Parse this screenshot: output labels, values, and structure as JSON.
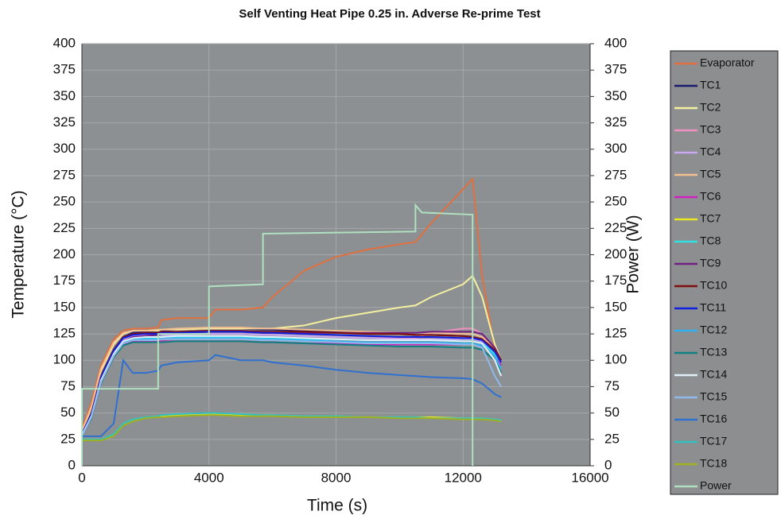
{
  "chart_data": {
    "type": "line",
    "title": "Self Venting Heat Pipe 0.25 in. Adverse Re-prime Test",
    "x_label": "Time (s)",
    "y_label": "Temperature (°C)",
    "y2_label": "Power (W)",
    "xlim": [
      0,
      16000
    ],
    "xticks": [
      0,
      4000,
      8000,
      12000,
      16000
    ],
    "ylim": [
      0,
      400
    ],
    "yticks": [
      0,
      25,
      50,
      75,
      100,
      125,
      150,
      175,
      200,
      225,
      250,
      275,
      300,
      325,
      350,
      375,
      400
    ],
    "y2lim": [
      0,
      400
    ],
    "y2ticks": [
      0,
      25,
      50,
      75,
      100,
      125,
      150,
      175,
      200,
      225,
      250,
      275,
      300,
      325,
      350,
      375,
      400
    ],
    "grid": true,
    "legend": "right",
    "x": [
      0,
      300,
      600,
      1000,
      1300,
      1600,
      2000,
      2400,
      2500,
      3000,
      4000,
      4200,
      5000,
      5700,
      6000,
      7000,
      8000,
      9000,
      10000,
      10500,
      11000,
      12000,
      12300,
      12600,
      13000,
      13200
    ],
    "series": [
      {
        "name": "Evaporator",
        "color": "#e07040",
        "values": [
          35,
          60,
          95,
          120,
          128,
          130,
          130,
          131,
          138,
          140,
          140,
          148,
          148,
          150,
          160,
          185,
          198,
          205,
          210,
          212,
          230,
          262,
          272,
          180,
          110,
          100
        ]
      },
      {
        "name": "TC1",
        "color": "#1a1a6e",
        "values": [
          30,
          50,
          85,
          110,
          122,
          126,
          127,
          127,
          128,
          129,
          130,
          130,
          130,
          129,
          129,
          128,
          127,
          126,
          125,
          124,
          124,
          123,
          122,
          120,
          110,
          100
        ]
      },
      {
        "name": "TC2",
        "color": "#f5f0a0",
        "values": [
          32,
          55,
          90,
          115,
          125,
          128,
          128,
          128,
          129,
          129,
          130,
          130,
          130,
          130,
          130,
          133,
          140,
          145,
          150,
          152,
          160,
          172,
          180,
          160,
          115,
          100
        ]
      },
      {
        "name": "TC3",
        "color": "#f090c0",
        "values": [
          30,
          48,
          82,
          108,
          120,
          124,
          124,
          124,
          125,
          125,
          125,
          125,
          125,
          124,
          124,
          123,
          122,
          121,
          121,
          121,
          126,
          130,
          130,
          125,
          110,
          100
        ]
      },
      {
        "name": "TC4",
        "color": "#c8a8f0",
        "values": [
          30,
          48,
          82,
          108,
          120,
          123,
          123,
          124,
          124,
          124,
          125,
          125,
          125,
          124,
          124,
          123,
          122,
          121,
          120,
          120,
          120,
          120,
          120,
          118,
          108,
          100
        ]
      },
      {
        "name": "TC5",
        "color": "#f5c090",
        "values": [
          33,
          56,
          92,
          117,
          126,
          128,
          128,
          129,
          129,
          130,
          131,
          131,
          131,
          130,
          130,
          129,
          128,
          127,
          126,
          126,
          126,
          125,
          125,
          122,
          110,
          100
        ]
      },
      {
        "name": "TC6",
        "color": "#d020c0",
        "values": [
          28,
          45,
          78,
          103,
          115,
          118,
          118,
          118,
          118,
          118,
          118,
          118,
          118,
          117,
          117,
          116,
          116,
          115,
          115,
          115,
          115,
          115,
          116,
          114,
          105,
          95
        ]
      },
      {
        "name": "TC7",
        "color": "#e8e820",
        "values": [
          25,
          25,
          25,
          30,
          40,
          44,
          46,
          47,
          47,
          48,
          49,
          49,
          48,
          48,
          48,
          47,
          47,
          46,
          46,
          46,
          46,
          45,
          45,
          45,
          44,
          43
        ]
      },
      {
        "name": "TC8",
        "color": "#30e0e0",
        "values": [
          29,
          47,
          80,
          106,
          118,
          121,
          121,
          121,
          122,
          122,
          122,
          122,
          122,
          121,
          121,
          120,
          120,
          119,
          119,
          119,
          119,
          118,
          118,
          116,
          106,
          98
        ]
      },
      {
        "name": "TC9",
        "color": "#702080",
        "values": [
          29,
          47,
          80,
          105,
          118,
          122,
          123,
          124,
          125,
          126,
          127,
          127,
          127,
          126,
          126,
          126,
          126,
          126,
          126,
          126,
          127,
          127,
          127,
          125,
          112,
          100
        ]
      },
      {
        "name": "TC10",
        "color": "#801010",
        "values": [
          30,
          50,
          85,
          110,
          122,
          125,
          126,
          126,
          127,
          127,
          128,
          128,
          128,
          127,
          127,
          127,
          126,
          125,
          125,
          124,
          124,
          123,
          122,
          120,
          110,
          100
        ]
      },
      {
        "name": "TC11",
        "color": "#1020e0",
        "values": [
          30,
          49,
          84,
          109,
          121,
          124,
          125,
          125,
          126,
          126,
          127,
          127,
          127,
          126,
          126,
          125,
          124,
          123,
          122,
          122,
          122,
          121,
          121,
          119,
          108,
          98
        ]
      },
      {
        "name": "TC12",
        "color": "#30b0f0",
        "values": [
          29,
          46,
          80,
          105,
          117,
          120,
          120,
          120,
          121,
          121,
          121,
          121,
          121,
          120,
          120,
          119,
          118,
          117,
          117,
          117,
          117,
          116,
          116,
          114,
          104,
          92
        ]
      },
      {
        "name": "TC13",
        "color": "#108080",
        "values": [
          28,
          45,
          78,
          103,
          114,
          117,
          117,
          117,
          117,
          118,
          118,
          118,
          118,
          117,
          117,
          116,
          115,
          114,
          113,
          113,
          113,
          112,
          112,
          110,
          100,
          88
        ]
      },
      {
        "name": "TC14",
        "color": "#e0f0f8",
        "values": [
          29,
          47,
          81,
          106,
          118,
          121,
          122,
          122,
          122,
          123,
          123,
          123,
          123,
          122,
          122,
          121,
          120,
          119,
          119,
          119,
          119,
          118,
          118,
          116,
          100,
          85
        ]
      },
      {
        "name": "TC15",
        "color": "#90b8e8",
        "values": [
          28,
          46,
          79,
          104,
          116,
          119,
          119,
          119,
          120,
          120,
          120,
          120,
          120,
          119,
          119,
          118,
          117,
          116,
          116,
          116,
          116,
          115,
          115,
          112,
          85,
          75
        ]
      },
      {
        "name": "TC16",
        "color": "#3070d0",
        "values": [
          28,
          28,
          28,
          40,
          100,
          88,
          88,
          90,
          95,
          98,
          100,
          105,
          100,
          100,
          98,
          95,
          91,
          88,
          86,
          85,
          84,
          83,
          82,
          78,
          68,
          65
        ]
      },
      {
        "name": "TC17",
        "color": "#30c0c0",
        "values": [
          25,
          25,
          25,
          30,
          40,
          44,
          46,
          47,
          48,
          49,
          50,
          50,
          49,
          48,
          48,
          47,
          47,
          46,
          46,
          46,
          45,
          45,
          45,
          45,
          44,
          43
        ]
      },
      {
        "name": "TC18",
        "color": "#a0b020",
        "values": [
          24,
          24,
          24,
          28,
          38,
          42,
          45,
          46,
          46,
          47,
          48,
          48,
          47,
          47,
          47,
          46,
          46,
          46,
          45,
          45,
          45,
          44,
          44,
          44,
          43,
          42
        ]
      },
      {
        "name": "Power",
        "color": "#b0e0c0",
        "axis": "y2",
        "x": [
          0,
          0,
          2400,
          2400,
          4000,
          4000,
          5700,
          5700,
          10500,
          10500,
          10700,
          12300,
          12300
        ],
        "values": [
          0,
          73,
          73,
          125,
          125,
          170,
          172,
          220,
          222,
          247,
          240,
          238,
          0
        ]
      }
    ]
  }
}
